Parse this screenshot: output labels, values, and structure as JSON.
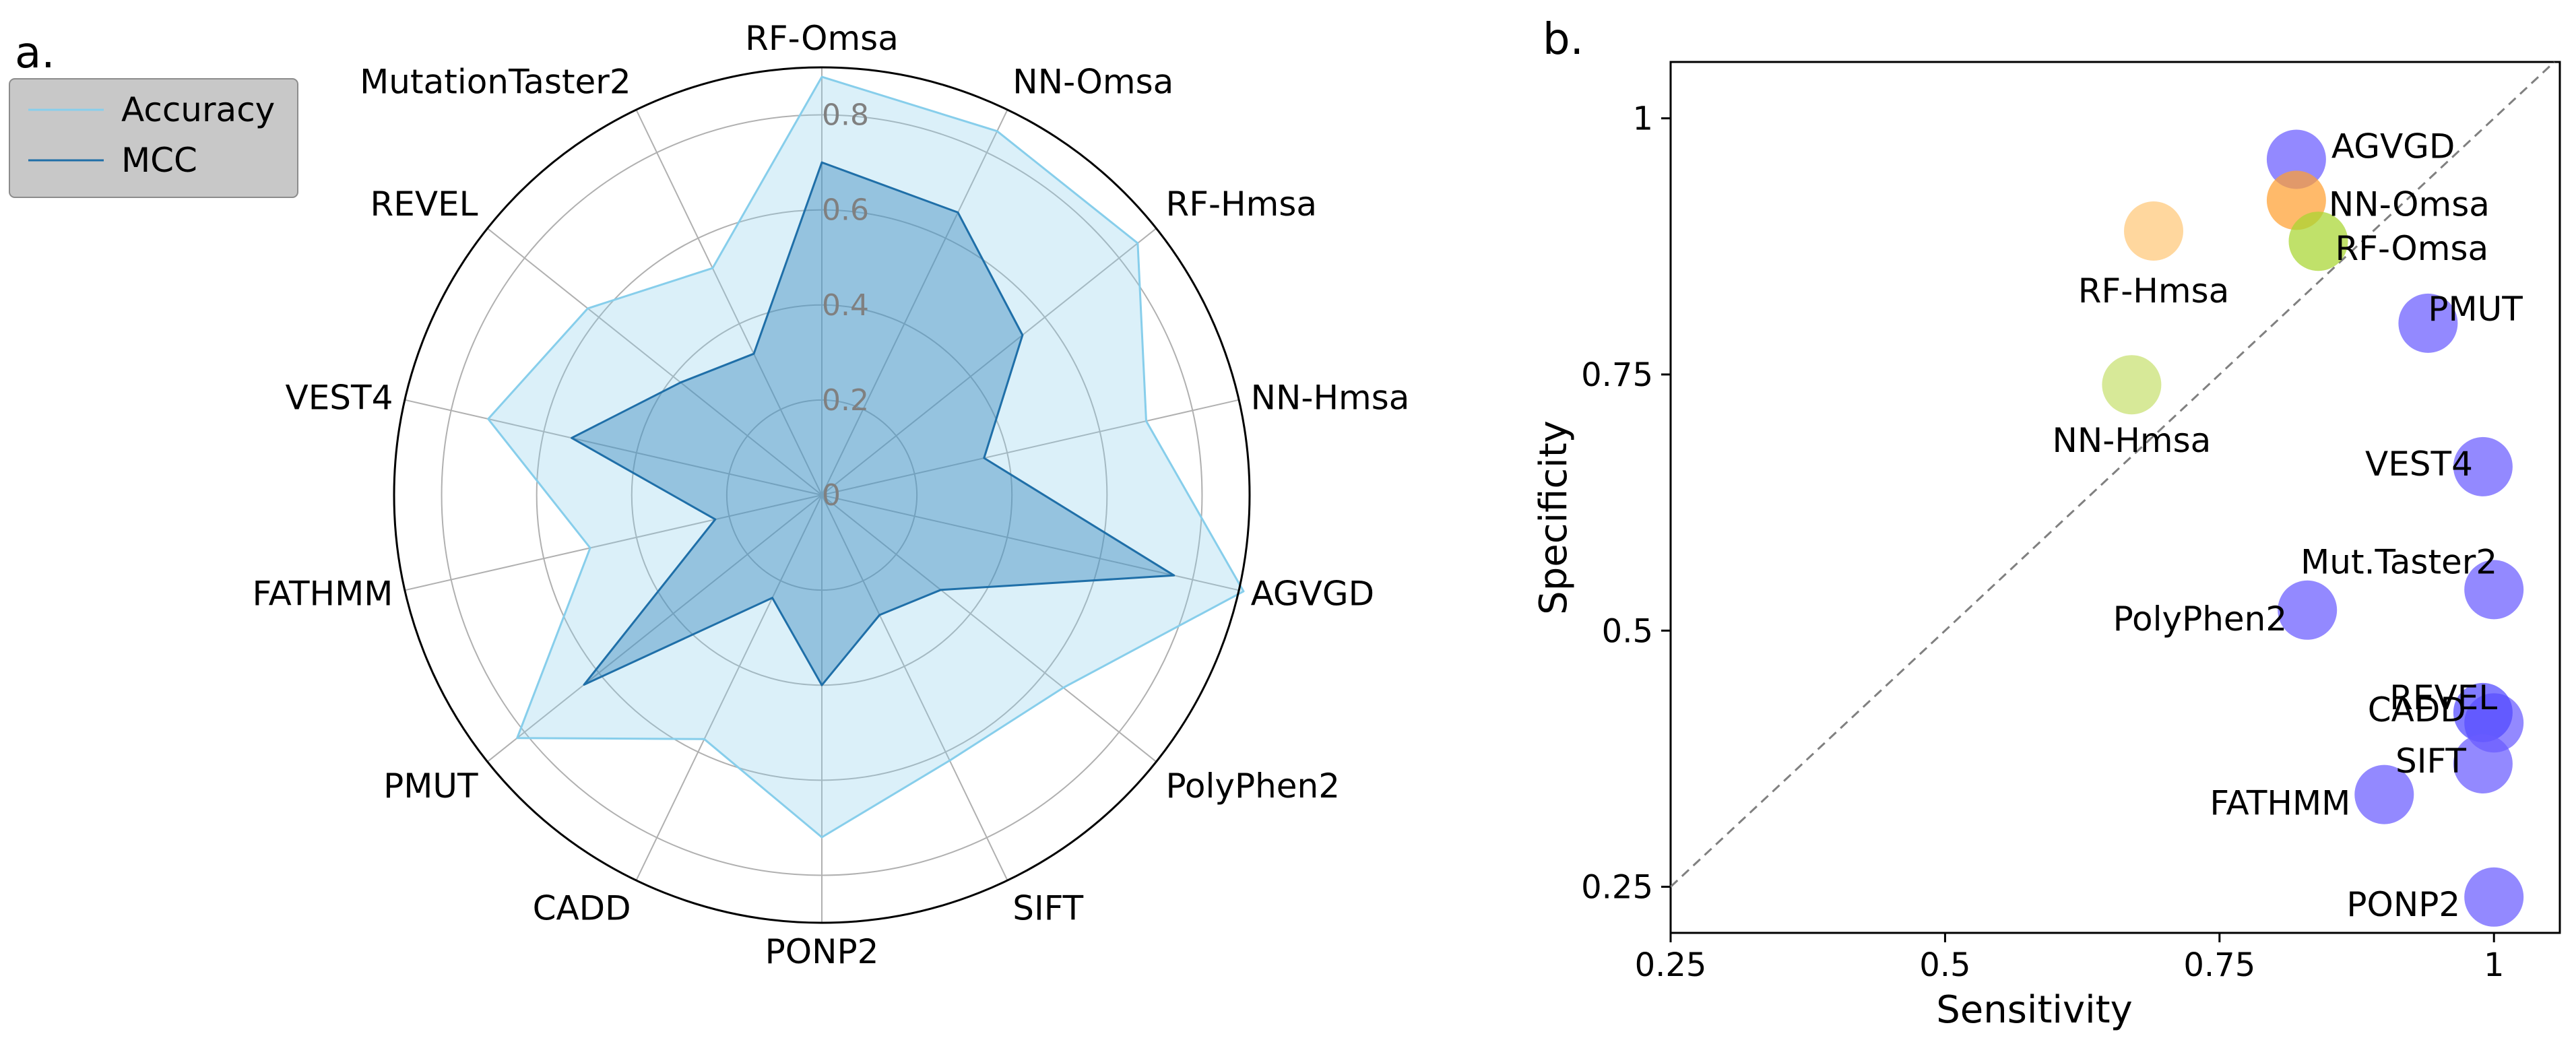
{
  "panel_labels": {
    "a": "a.",
    "b": "b."
  },
  "chart_data": [
    {
      "type": "radar",
      "axes": [
        "RF-Omsa",
        "NN-Omsa",
        "RF-Hmsa",
        "NN-Hmsa",
        "AGVGD",
        "PolyPhen2",
        "SIFT",
        "PONP2",
        "CADD",
        "PMUT",
        "FATHMM",
        "VEST4",
        "REVEL",
        "MutationTaster2"
      ],
      "rlim": [
        0,
        0.9
      ],
      "radial_ticks": [
        0,
        0.2,
        0.4,
        0.6,
        0.8
      ],
      "radial_tick_labels": [
        "0",
        "0.2",
        "0.4",
        "0.6",
        "0.8"
      ],
      "grid": true,
      "legend_position": "top-left",
      "series": [
        {
          "name": "Accuracy",
          "values": [
            0.88,
            0.85,
            0.85,
            0.7,
            0.91,
            0.65,
            0.62,
            0.72,
            0.57,
            0.82,
            0.5,
            0.72,
            0.63,
            0.53
          ],
          "line_color": "#87CEEB",
          "fill_color": "#87CEEB",
          "fill_opacity": 0.3
        },
        {
          "name": "MCC",
          "values": [
            0.7,
            0.66,
            0.54,
            0.35,
            0.76,
            0.32,
            0.28,
            0.4,
            0.24,
            0.64,
            0.23,
            0.54,
            0.38,
            0.33
          ],
          "line_color": "#1F6FA8",
          "fill_color": "#2C7FB8",
          "fill_opacity": 0.4
        }
      ]
    },
    {
      "type": "scatter",
      "xlabel": "Sensitivity",
      "ylabel": "Specificity",
      "xlim": [
        0.25,
        1.06
      ],
      "ylim": [
        0.205,
        1.055
      ],
      "xticks": [
        0.25,
        0.5,
        0.75,
        1
      ],
      "xtick_labels": [
        "0.25",
        "0.5",
        "0.75",
        "1"
      ],
      "yticks": [
        0.25,
        0.5,
        0.75,
        1
      ],
      "ytick_labels": [
        "0.25",
        "0.5",
        "0.75",
        "1"
      ],
      "diagonal_reference": true,
      "points": [
        {
          "label": "AGVGD",
          "x": 0.82,
          "y": 0.96,
          "color": "#6A5CFF"
        },
        {
          "label": "NN-Omsa",
          "x": 0.82,
          "y": 0.92,
          "color": "#FFA030"
        },
        {
          "label": "RF-Omsa",
          "x": 0.84,
          "y": 0.88,
          "color": "#A8D530"
        },
        {
          "label": "RF-Hmsa",
          "x": 0.69,
          "y": 0.89,
          "color": "#FFC878"
        },
        {
          "label": "PMUT",
          "x": 0.94,
          "y": 0.8,
          "color": "#6A5CFF"
        },
        {
          "label": "NN-Hmsa",
          "x": 0.67,
          "y": 0.74,
          "color": "#C8E070"
        },
        {
          "label": "VEST4",
          "x": 0.99,
          "y": 0.66,
          "color": "#6A5CFF"
        },
        {
          "label": "Mut.Taster2",
          "x": 1.0,
          "y": 0.54,
          "color": "#6A5CFF"
        },
        {
          "label": "PolyPhen2",
          "x": 0.83,
          "y": 0.52,
          "color": "#6A5CFF"
        },
        {
          "label": "REVEL",
          "x": 1.0,
          "y": 0.41,
          "color": "#6A5CFF"
        },
        {
          "label": "CADD",
          "x": 0.99,
          "y": 0.42,
          "color": "#5048FF"
        },
        {
          "label": "SIFT",
          "x": 0.99,
          "y": 0.37,
          "color": "#6A5CFF"
        },
        {
          "label": "FATHMM",
          "x": 0.9,
          "y": 0.34,
          "color": "#6A5CFF"
        },
        {
          "label": "PONP2",
          "x": 1.0,
          "y": 0.24,
          "color": "#6A5CFF"
        }
      ]
    }
  ]
}
